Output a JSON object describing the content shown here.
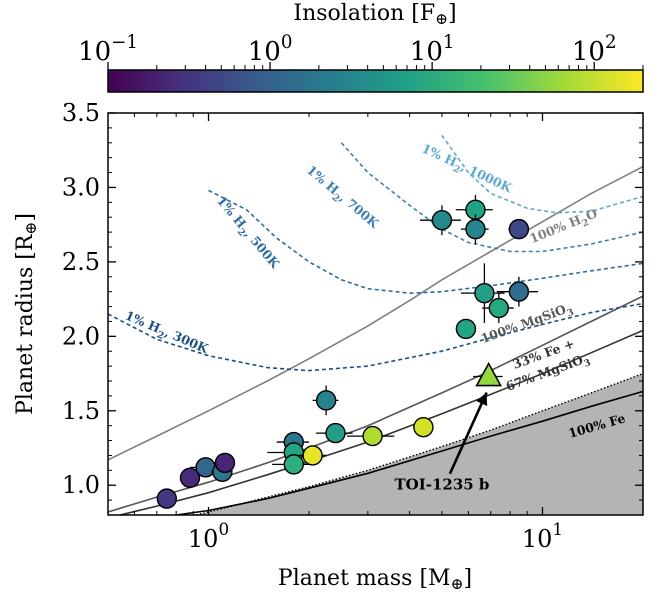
{
  "chart_data": {
    "type": "scatter",
    "xlabel_main": "Planet mass [M",
    "xlabel_sub": "⊕",
    "xlabel_end": "]",
    "ylabel_main": "Planet radius [R",
    "ylabel_sub": "⊕",
    "ylabel_end": "]",
    "xscale": "log",
    "xlim": [
      0.5,
      20
    ],
    "ylim": [
      0.8,
      3.5
    ],
    "x_ticks": [
      {
        "value": 1,
        "base": "10",
        "exp": "0"
      },
      {
        "value": 10,
        "base": "10",
        "exp": "1"
      }
    ],
    "y_ticks": [
      {
        "value": 1.0,
        "label": "1.0"
      },
      {
        "value": 1.5,
        "label": "1.5"
      },
      {
        "value": 2.0,
        "label": "2.0"
      },
      {
        "value": 2.5,
        "label": "2.5"
      },
      {
        "value": 3.0,
        "label": "3.0"
      },
      {
        "value": 3.5,
        "label": "3.5"
      }
    ],
    "colorbar": {
      "label_main": "Insolation [F",
      "label_sub": "⊕",
      "label_end": "]",
      "scale": "log",
      "range": [
        0.1,
        200
      ],
      "colormap": "viridis",
      "ticks": [
        {
          "value": 0.1,
          "base": "10",
          "exp": "−1"
        },
        {
          "value": 1,
          "base": "10",
          "exp": "0"
        },
        {
          "value": 10,
          "base": "10",
          "exp": "1"
        },
        {
          "value": 100,
          "base": "10",
          "exp": "2"
        }
      ]
    },
    "points": [
      {
        "x": 0.75,
        "y": 0.91,
        "xerr": 0.03,
        "yerr": 0.03,
        "insolation": 0.35
      },
      {
        "x": 0.88,
        "y": 1.05,
        "xerr": 0.05,
        "yerr": 0.03,
        "insolation": 0.25
      },
      {
        "x": 0.98,
        "y": 1.12,
        "xerr": 0.1,
        "yerr": 0.03,
        "insolation": 1.2
      },
      {
        "x": 1.1,
        "y": 1.09,
        "xerr": 0.08,
        "yerr": 0.03,
        "insolation": 2.0
      },
      {
        "x": 1.12,
        "y": 1.15,
        "xerr": 0.08,
        "yerr": 0.03,
        "insolation": 0.22
      },
      {
        "x": 1.8,
        "y": 1.29,
        "xerr": 0.2,
        "yerr": 0.04,
        "insolation": 2.0
      },
      {
        "x": 1.8,
        "y": 1.22,
        "xerr": 0.3,
        "yerr": 0.04,
        "insolation": 9.0
      },
      {
        "x": 1.8,
        "y": 1.14,
        "xerr": 0.25,
        "yerr": 0.05,
        "insolation": 12.0
      },
      {
        "x": 2.05,
        "y": 1.2,
        "xerr": 0.2,
        "yerr": 0.04,
        "insolation": 150.0
      },
      {
        "x": 2.25,
        "y": 1.57,
        "xerr": 0.2,
        "yerr": 0.1,
        "insolation": 3.0
      },
      {
        "x": 2.4,
        "y": 1.35,
        "xerr": 0.3,
        "yerr": 0.05,
        "insolation": 7.0
      },
      {
        "x": 3.1,
        "y": 1.33,
        "xerr": 0.5,
        "yerr": 0.04,
        "insolation": 80.0
      },
      {
        "x": 4.4,
        "y": 1.39,
        "xerr": 0.3,
        "yerr": 0.05,
        "insolation": 120.0
      },
      {
        "x": 5.0,
        "y": 2.78,
        "xerr": 0.7,
        "yerr": 0.1,
        "insolation": 3.5
      },
      {
        "x": 5.9,
        "y": 2.05,
        "xerr": 0.4,
        "yerr": 0.05,
        "insolation": 9.0
      },
      {
        "x": 6.3,
        "y": 2.85,
        "xerr": 0.8,
        "yerr": 0.1,
        "insolation": 8.0
      },
      {
        "x": 6.3,
        "y": 2.72,
        "xerr": 0.6,
        "yerr": 0.1,
        "insolation": 3.0
      },
      {
        "x": 6.7,
        "y": 2.29,
        "xerr": 1.0,
        "yerr": 0.2,
        "insolation": 7.0
      },
      {
        "x": 7.4,
        "y": 2.19,
        "xerr": 0.8,
        "yerr": 0.1,
        "insolation": 10.0
      },
      {
        "x": 8.5,
        "y": 2.72,
        "xerr": 0.6,
        "yerr": 0.05,
        "insolation": 0.5
      },
      {
        "x": 8.5,
        "y": 2.3,
        "xerr": 1.2,
        "yerr": 0.1,
        "insolation": 1.5
      }
    ],
    "highlight": {
      "label": "TOI-1235 b",
      "x": 6.9,
      "y": 1.73,
      "xerr": 0.7,
      "yerr": 0.03,
      "insolation": 60.0,
      "label_x": 5.0,
      "label_y": 0.97
    },
    "curves": [
      {
        "label": "100% H",
        "sub": "2",
        "label_end": "O",
        "color": "#808080",
        "dash": "",
        "x": [
          0.5,
          0.7,
          1,
          1.5,
          2,
          3,
          4,
          5,
          7,
          10,
          14,
          20
        ],
        "y": [
          1.17,
          1.33,
          1.5,
          1.7,
          1.85,
          2.07,
          2.24,
          2.38,
          2.57,
          2.77,
          2.96,
          3.14
        ]
      },
      {
        "label": "100% MgSiO",
        "sub": "3",
        "label_end": "",
        "color": "#555555",
        "dash": "",
        "x": [
          0.5,
          0.7,
          1,
          1.5,
          2,
          3,
          5,
          7,
          10,
          14,
          20
        ],
        "y": [
          0.82,
          0.92,
          1.02,
          1.15,
          1.25,
          1.4,
          1.62,
          1.77,
          1.94,
          2.1,
          2.27
        ]
      },
      {
        "label": "33% Fe + ",
        "sub": "",
        "label_end": "",
        "color": "#333333",
        "dash": "",
        "x": [
          0.5,
          0.7,
          1,
          1.5,
          2,
          3,
          5,
          7,
          10,
          14,
          20
        ],
        "y": [
          0.78,
          0.86,
          0.95,
          1.07,
          1.16,
          1.29,
          1.48,
          1.61,
          1.75,
          1.89,
          2.04
        ]
      },
      {
        "label": "100% Fe",
        "sub": "",
        "label_end": "",
        "color": "#000000",
        "dash": "",
        "x": [
          0.8,
          1,
          1.5,
          2,
          3,
          5,
          7,
          10,
          14,
          20
        ],
        "y": [
          0.8,
          0.83,
          0.91,
          0.98,
          1.08,
          1.23,
          1.33,
          1.43,
          1.53,
          1.63
        ]
      },
      {
        "label": "1% H",
        "sub": "2",
        "label_end": ", 300K",
        "color": "#1b4f8a",
        "dash": "4,3",
        "x": [
          0.5,
          0.7,
          1,
          1.5,
          2,
          3,
          5,
          7,
          10,
          14,
          20
        ],
        "y": [
          2.15,
          1.98,
          1.87,
          1.79,
          1.77,
          1.8,
          1.9,
          1.99,
          2.08,
          2.16,
          2.22
        ]
      },
      {
        "label": "1% H",
        "sub": "2",
        "label_end": ", 500K",
        "color": "#2b6ca8",
        "dash": "4,3",
        "x": [
          1,
          1.3,
          1.6,
          2,
          2.5,
          3,
          4,
          5,
          7,
          10,
          14,
          20
        ],
        "y": [
          2.98,
          2.85,
          2.66,
          2.5,
          2.38,
          2.32,
          2.29,
          2.3,
          2.34,
          2.39,
          2.44,
          2.49
        ]
      },
      {
        "label": "1% H",
        "sub": "2",
        "label_end": ", 700K",
        "color": "#3a80bf",
        "dash": "4,3",
        "x": [
          2.5,
          3,
          4,
          5,
          6,
          8,
          10,
          14,
          20
        ],
        "y": [
          3.3,
          3.1,
          2.88,
          2.72,
          2.63,
          2.57,
          2.57,
          2.62,
          2.7
        ]
      },
      {
        "label": "1% H",
        "sub": "2",
        "label_end": ", 1000K",
        "color": "#5ca7d9",
        "dash": "4,3",
        "x": [
          5,
          6,
          7,
          9,
          11,
          14,
          20
        ],
        "y": [
          3.35,
          3.1,
          2.96,
          2.86,
          2.83,
          2.84,
          2.94
        ]
      }
    ]
  }
}
